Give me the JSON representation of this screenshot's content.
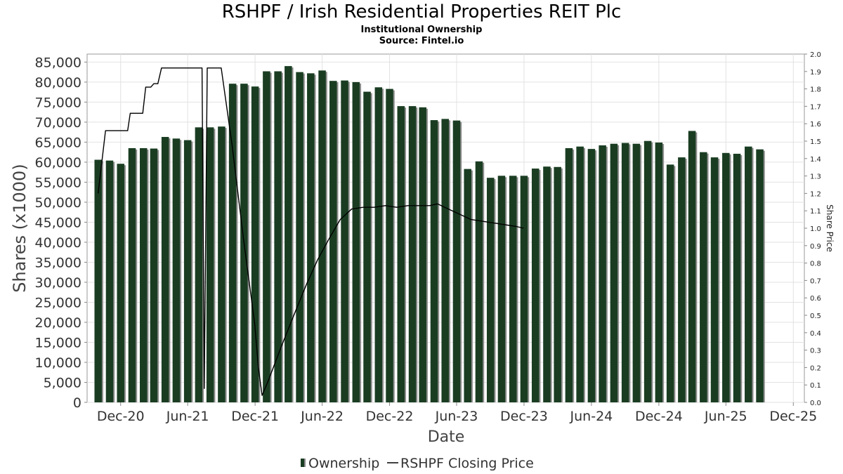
{
  "chart_data": {
    "type": "bar",
    "title": "RSHPF / Irish Residential Properties REIT Plc",
    "subtitle": "Institutional Ownership",
    "source": "Source: Fintel.io",
    "xlabel": "Date",
    "ylabel": "Shares (x1000)",
    "y2label": "Share Price",
    "ylim": [
      0,
      87000
    ],
    "y2lim": [
      0,
      2.0
    ],
    "xlim": [
      "2020-09-01",
      "2025-12-31"
    ],
    "grid": true,
    "legend_position": "bottom-center",
    "x_ticks": [
      "Dec-20",
      "Jun-21",
      "Dec-21",
      "Jun-22",
      "Dec-22",
      "Jun-23",
      "Dec-23",
      "Jun-24",
      "Dec-24",
      "Jun-25",
      "Dec-25"
    ],
    "y_ticks": [
      "0",
      "5,000",
      "10,000",
      "15,000",
      "20,000",
      "25,000",
      "30,000",
      "35,000",
      "40,000",
      "45,000",
      "50,000",
      "55,000",
      "60,000",
      "65,000",
      "70,000",
      "75,000",
      "80,000",
      "85,000"
    ],
    "y2_ticks": [
      "0.0",
      "0.1",
      "0.2",
      "0.3",
      "0.4",
      "0.5",
      "0.6",
      "0.7",
      "0.8",
      "0.9",
      "1.0",
      "1.1",
      "1.2",
      "1.3",
      "1.4",
      "1.5",
      "1.6",
      "1.7",
      "1.8",
      "1.9",
      "2.0"
    ],
    "series": [
      {
        "name": "Ownership",
        "type": "bar",
        "color": "#1a3d22",
        "x": [
          "2020-10-01",
          "2020-11-01",
          "2020-12-01",
          "2021-01-01",
          "2021-02-01",
          "2021-03-01",
          "2021-04-01",
          "2021-05-01",
          "2021-06-01",
          "2021-07-01",
          "2021-08-01",
          "2021-09-01",
          "2021-10-01",
          "2021-11-01",
          "2021-12-01",
          "2022-01-01",
          "2022-02-01",
          "2022-03-01",
          "2022-04-01",
          "2022-05-01",
          "2022-06-01",
          "2022-07-01",
          "2022-08-01",
          "2022-09-01",
          "2022-10-01",
          "2022-11-01",
          "2022-12-01",
          "2023-01-01",
          "2023-02-01",
          "2023-03-01",
          "2023-04-01",
          "2023-05-01",
          "2023-06-01",
          "2023-07-01",
          "2023-08-01",
          "2023-09-01",
          "2023-10-01",
          "2023-11-01",
          "2023-12-01",
          "2024-01-01",
          "2024-02-01",
          "2024-03-01",
          "2024-04-01",
          "2024-05-01",
          "2024-06-01",
          "2024-07-01",
          "2024-08-01",
          "2024-09-01",
          "2024-10-01",
          "2024-11-01",
          "2024-12-01",
          "2025-01-01",
          "2025-02-01",
          "2025-03-01",
          "2025-04-01",
          "2025-05-01",
          "2025-06-01",
          "2025-07-01",
          "2025-08-01",
          "2025-09-01"
        ],
        "values": [
          60600,
          60400,
          59600,
          63500,
          63500,
          63400,
          66300,
          65900,
          65500,
          68700,
          68700,
          68900,
          79600,
          79600,
          78900,
          82700,
          82700,
          84000,
          82500,
          82200,
          82900,
          80300,
          80400,
          80000,
          77600,
          78700,
          78300,
          74000,
          74000,
          73700,
          70500,
          70800,
          70400,
          58300,
          60200,
          56100,
          56600,
          56600,
          56600,
          58400,
          58900,
          58800,
          63500,
          63900,
          63300,
          64200,
          64600,
          64800,
          64600,
          65300,
          64900,
          59400,
          61200,
          67800,
          62500,
          61200,
          62300,
          62100,
          63900,
          63200
        ]
      },
      {
        "name": "RSHPF Closing Price",
        "type": "line",
        "color": "#000000",
        "points": [
          {
            "x": "2020-10-01",
            "y": 1.2
          },
          {
            "x": "2020-10-21",
            "y": 1.56
          },
          {
            "x": "2020-12-20",
            "y": 1.56
          },
          {
            "x": "2020-12-27",
            "y": 1.66
          },
          {
            "x": "2021-01-30",
            "y": 1.66
          },
          {
            "x": "2021-02-07",
            "y": 1.81
          },
          {
            "x": "2021-02-21",
            "y": 1.81
          },
          {
            "x": "2021-03-01",
            "y": 1.83
          },
          {
            "x": "2021-03-12",
            "y": 1.83
          },
          {
            "x": "2021-03-22",
            "y": 1.92
          },
          {
            "x": "2021-07-10",
            "y": 1.92
          },
          {
            "x": "2021-07-16",
            "y": 0.08
          },
          {
            "x": "2021-07-24",
            "y": 1.92
          },
          {
            "x": "2021-08-31",
            "y": 1.92
          },
          {
            "x": "2021-09-30",
            "y": 1.47
          },
          {
            "x": "2021-10-31",
            "y": 0.93
          },
          {
            "x": "2021-11-30",
            "y": 0.45
          },
          {
            "x": "2021-12-10",
            "y": 0.2
          },
          {
            "x": "2021-12-20",
            "y": 0.04
          },
          {
            "x": "2022-01-05",
            "y": 0.12
          },
          {
            "x": "2022-02-10",
            "y": 0.32
          },
          {
            "x": "2022-03-20",
            "y": 0.52
          },
          {
            "x": "2022-04-20",
            "y": 0.68
          },
          {
            "x": "2022-05-20",
            "y": 0.82
          },
          {
            "x": "2022-06-20",
            "y": 0.94
          },
          {
            "x": "2022-07-20",
            "y": 1.05
          },
          {
            "x": "2022-08-20",
            "y": 1.11
          },
          {
            "x": "2022-09-20",
            "y": 1.12
          },
          {
            "x": "2022-10-20",
            "y": 1.12
          },
          {
            "x": "2022-11-20",
            "y": 1.13
          },
          {
            "x": "2022-12-20",
            "y": 1.12
          },
          {
            "x": "2023-01-20",
            "y": 1.13
          },
          {
            "x": "2023-02-20",
            "y": 1.13
          },
          {
            "x": "2023-03-20",
            "y": 1.13
          },
          {
            "x": "2023-04-10",
            "y": 1.14
          },
          {
            "x": "2023-05-10",
            "y": 1.11
          },
          {
            "x": "2023-06-10",
            "y": 1.08
          },
          {
            "x": "2023-07-10",
            "y": 1.05
          },
          {
            "x": "2023-08-10",
            "y": 1.04
          },
          {
            "x": "2023-09-10",
            "y": 1.03
          },
          {
            "x": "2023-10-10",
            "y": 1.02
          },
          {
            "x": "2023-11-10",
            "y": 1.01
          },
          {
            "x": "2023-11-30",
            "y": 1.0
          }
        ]
      }
    ]
  }
}
